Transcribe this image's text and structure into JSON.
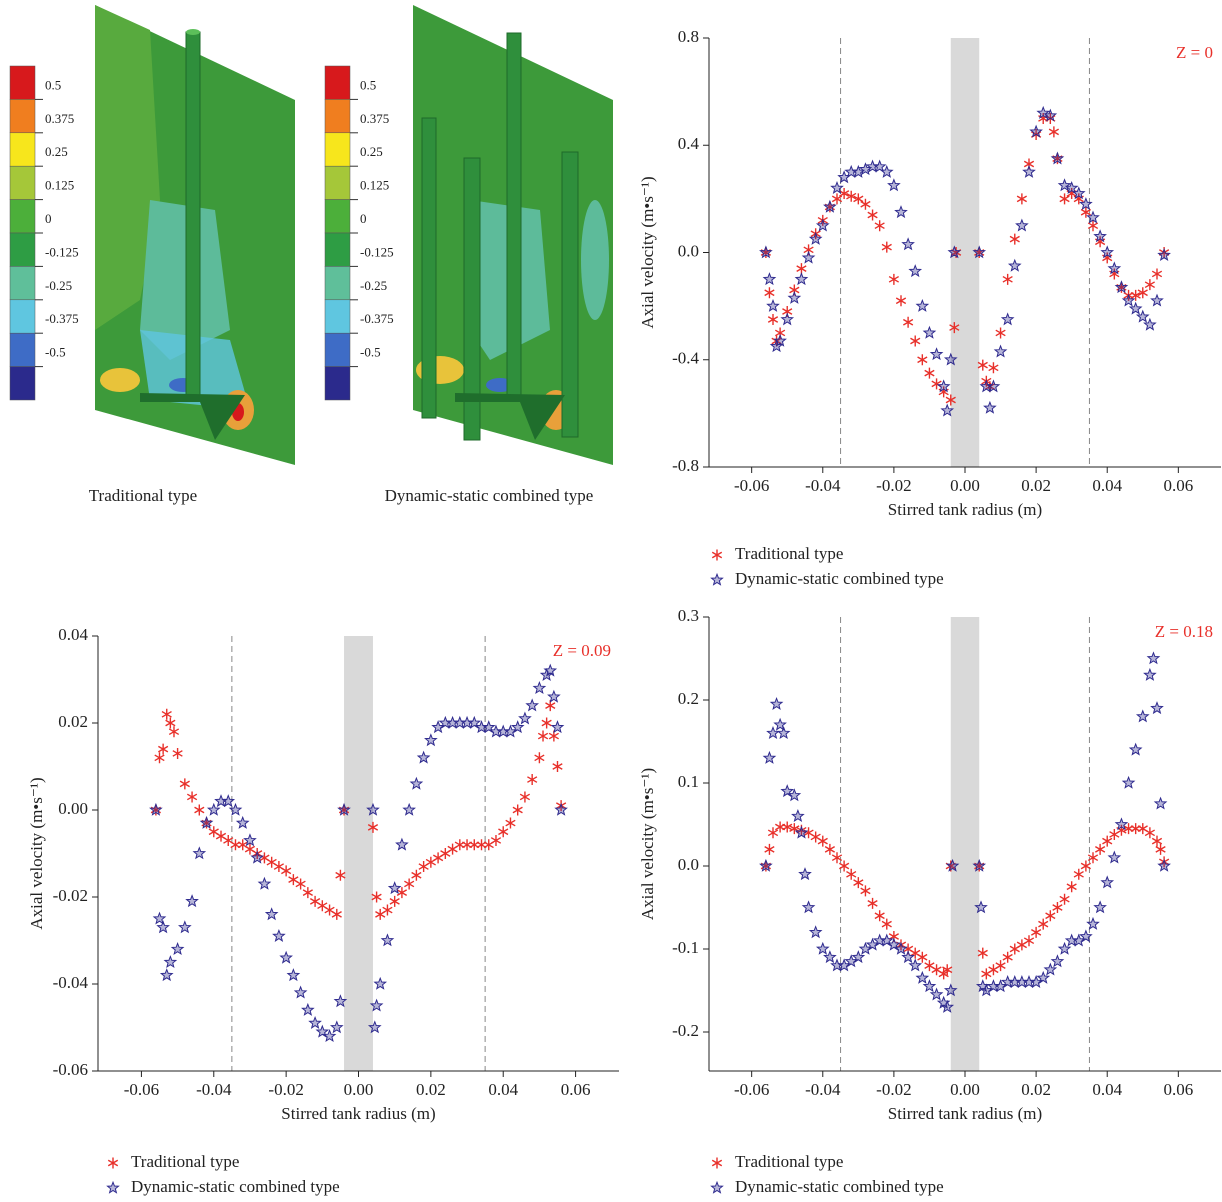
{
  "contour_panels": {
    "colorbar_ticks": [
      0.5,
      0.375,
      0.25,
      0.125,
      0,
      -0.125,
      -0.25,
      -0.375,
      -0.5
    ],
    "captions": [
      "Traditional type",
      "Dynamic-static combined type"
    ]
  },
  "chart_data": [
    {
      "type": "scatter",
      "annotation": "Z = 0",
      "xlabel": "Stirred tank radius (m)",
      "ylabel": "Axial velocity (m•s⁻¹)",
      "xlim": [
        -0.072,
        0.072
      ],
      "ylim": [
        -0.8,
        0.8
      ],
      "xticks": [
        -0.06,
        -0.04,
        -0.02,
        {
          "value": 0,
          "label": "0.00"
        },
        0.02,
        0.04,
        0.06
      ],
      "yticks": [
        -0.8,
        -0.4,
        {
          "value": 0,
          "label": "0.0"
        },
        0.4,
        0.8
      ],
      "reference_lines": [
        -0.035,
        0.035
      ],
      "shaded_band": [
        -0.004,
        0.004
      ],
      "series": [
        {
          "name": "Traditional type",
          "color": "#e8302a",
          "marker": "asterisk",
          "x": [
            -0.056,
            -0.055,
            -0.054,
            -0.053,
            -0.052,
            -0.05,
            -0.048,
            -0.046,
            -0.044,
            -0.042,
            -0.04,
            -0.038,
            -0.036,
            -0.034,
            -0.032,
            -0.03,
            -0.028,
            -0.026,
            -0.024,
            -0.022,
            -0.02,
            -0.018,
            -0.016,
            -0.014,
            -0.012,
            -0.01,
            -0.008,
            -0.006,
            -0.004,
            -0.003,
            -0.0025,
            0.004,
            0.005,
            0.006,
            0.007,
            0.008,
            0.01,
            0.012,
            0.014,
            0.016,
            0.018,
            0.02,
            0.022,
            0.024,
            0.025,
            0.026,
            0.028,
            0.03,
            0.032,
            0.034,
            0.036,
            0.038,
            0.04,
            0.042,
            0.044,
            0.046,
            0.048,
            0.05,
            0.052,
            0.054,
            0.056
          ],
          "values": [
            0,
            -0.15,
            -0.25,
            -0.33,
            -0.3,
            -0.22,
            -0.14,
            -0.06,
            0.01,
            0.07,
            0.12,
            0.17,
            0.2,
            0.22,
            0.21,
            0.2,
            0.18,
            0.14,
            0.1,
            0.02,
            -0.1,
            -0.18,
            -0.26,
            -0.33,
            -0.4,
            -0.45,
            -0.49,
            -0.52,
            -0.55,
            -0.28,
            0,
            0,
            -0.42,
            -0.48,
            -0.5,
            -0.43,
            -0.3,
            -0.1,
            0.05,
            0.2,
            0.33,
            0.44,
            0.5,
            0.5,
            0.45,
            0.35,
            0.2,
            0.22,
            0.2,
            0.15,
            0.1,
            0.04,
            -0.02,
            -0.08,
            -0.13,
            -0.16,
            -0.16,
            -0.15,
            -0.12,
            -0.08,
            0
          ]
        },
        {
          "name": "Dynamic-static combined type",
          "color": "#2e2a8e",
          "marker": "star",
          "x": [
            -0.056,
            -0.055,
            -0.054,
            -0.053,
            -0.052,
            -0.05,
            -0.048,
            -0.046,
            -0.044,
            -0.042,
            -0.04,
            -0.038,
            -0.036,
            -0.034,
            -0.032,
            -0.03,
            -0.028,
            -0.026,
            -0.024,
            -0.022,
            -0.02,
            -0.018,
            -0.016,
            -0.014,
            -0.012,
            -0.01,
            -0.008,
            -0.006,
            -0.005,
            -0.004,
            -0.003,
            0.004,
            0.006,
            0.007,
            0.008,
            0.01,
            0.012,
            0.014,
            0.016,
            0.018,
            0.02,
            0.022,
            0.024,
            0.026,
            0.028,
            0.03,
            0.032,
            0.034,
            0.036,
            0.038,
            0.04,
            0.042,
            0.044,
            0.046,
            0.048,
            0.05,
            0.052,
            0.054,
            0.056
          ],
          "values": [
            0,
            -0.1,
            -0.2,
            -0.35,
            -0.33,
            -0.25,
            -0.17,
            -0.1,
            -0.02,
            0.05,
            0.1,
            0.17,
            0.24,
            0.28,
            0.3,
            0.3,
            0.31,
            0.32,
            0.32,
            0.3,
            0.25,
            0.15,
            0.03,
            -0.07,
            -0.2,
            -0.3,
            -0.38,
            -0.5,
            -0.59,
            -0.4,
            0,
            0,
            -0.5,
            -0.58,
            -0.5,
            -0.37,
            -0.25,
            -0.05,
            0.1,
            0.3,
            0.45,
            0.52,
            0.51,
            0.35,
            0.25,
            0.24,
            0.22,
            0.18,
            0.13,
            0.06,
            0,
            -0.06,
            -0.13,
            -0.18,
            -0.21,
            -0.24,
            -0.27,
            -0.18,
            -0.01
          ]
        }
      ]
    },
    {
      "type": "scatter",
      "annotation": "Z = 0.09",
      "xlabel": "Stirred tank radius (m)",
      "ylabel": "Axial velocity (m•s⁻¹)",
      "xlim": [
        -0.072,
        0.072
      ],
      "ylim": [
        -0.06,
        0.04
      ],
      "xticks": [
        -0.06,
        -0.04,
        -0.02,
        {
          "value": 0,
          "label": "0.00"
        },
        0.02,
        0.04,
        0.06
      ],
      "yticks": [
        -0.06,
        -0.04,
        -0.02,
        {
          "value": 0,
          "label": "0.00"
        },
        0.02,
        0.04
      ],
      "reference_lines": [
        -0.035,
        0.035
      ],
      "shaded_band": [
        -0.004,
        0.004
      ],
      "series": [
        {
          "name": "Traditional type",
          "color": "#e8302a",
          "marker": "asterisk",
          "x": [
            -0.056,
            -0.055,
            -0.054,
            -0.053,
            -0.052,
            -0.051,
            -0.05,
            -0.048,
            -0.046,
            -0.044,
            -0.042,
            -0.04,
            -0.038,
            -0.036,
            -0.034,
            -0.032,
            -0.03,
            -0.028,
            -0.026,
            -0.024,
            -0.022,
            -0.02,
            -0.018,
            -0.016,
            -0.014,
            -0.012,
            -0.01,
            -0.008,
            -0.006,
            -0.005,
            -0.004,
            0.004,
            0.005,
            0.006,
            0.008,
            0.01,
            0.012,
            0.014,
            0.016,
            0.018,
            0.02,
            0.022,
            0.024,
            0.026,
            0.028,
            0.03,
            0.032,
            0.034,
            0.036,
            0.038,
            0.04,
            0.042,
            0.044,
            0.046,
            0.048,
            0.05,
            0.051,
            0.052,
            0.053,
            0.054,
            0.055,
            0.056
          ],
          "values": [
            0,
            0.012,
            0.014,
            0.022,
            0.02,
            0.018,
            0.013,
            0.006,
            0.003,
            0,
            -0.003,
            -0.005,
            -0.006,
            -0.007,
            -0.008,
            -0.008,
            -0.009,
            -0.01,
            -0.011,
            -0.012,
            -0.013,
            -0.014,
            -0.016,
            -0.017,
            -0.019,
            -0.021,
            -0.022,
            -0.023,
            -0.024,
            -0.015,
            0,
            -0.004,
            -0.02,
            -0.024,
            -0.023,
            -0.021,
            -0.019,
            -0.017,
            -0.015,
            -0.013,
            -0.012,
            -0.011,
            -0.01,
            -0.009,
            -0.008,
            -0.008,
            -0.008,
            -0.008,
            -0.008,
            -0.007,
            -0.005,
            -0.003,
            0,
            0.003,
            0.007,
            0.012,
            0.017,
            0.02,
            0.024,
            0.017,
            0.01,
            0.001
          ]
        },
        {
          "name": "Dynamic-static combined type",
          "color": "#2e2a8e",
          "marker": "star",
          "x": [
            -0.056,
            -0.055,
            -0.054,
            -0.053,
            -0.052,
            -0.05,
            -0.048,
            -0.046,
            -0.044,
            -0.042,
            -0.04,
            -0.038,
            -0.036,
            -0.034,
            -0.032,
            -0.03,
            -0.028,
            -0.026,
            -0.024,
            -0.022,
            -0.02,
            -0.018,
            -0.016,
            -0.014,
            -0.012,
            -0.01,
            -0.008,
            -0.006,
            -0.005,
            -0.004,
            0.004,
            0.0045,
            0.005,
            0.006,
            0.008,
            0.01,
            0.012,
            0.014,
            0.016,
            0.018,
            0.02,
            0.022,
            0.024,
            0.026,
            0.028,
            0.03,
            0.032,
            0.034,
            0.036,
            0.038,
            0.04,
            0.042,
            0.044,
            0.046,
            0.048,
            0.05,
            0.052,
            0.053,
            0.054,
            0.055,
            0.056
          ],
          "values": [
            0,
            -0.025,
            -0.027,
            -0.038,
            -0.035,
            -0.032,
            -0.027,
            -0.021,
            -0.01,
            -0.003,
            0,
            0.002,
            0.002,
            0,
            -0.003,
            -0.007,
            -0.011,
            -0.017,
            -0.024,
            -0.029,
            -0.034,
            -0.038,
            -0.042,
            -0.046,
            -0.049,
            -0.051,
            -0.052,
            -0.05,
            -0.044,
            0,
            0,
            -0.05,
            -0.045,
            -0.04,
            -0.03,
            -0.018,
            -0.008,
            0,
            0.006,
            0.012,
            0.016,
            0.019,
            0.02,
            0.02,
            0.02,
            0.02,
            0.02,
            0.019,
            0.019,
            0.018,
            0.018,
            0.018,
            0.019,
            0.021,
            0.024,
            0.028,
            0.031,
            0.032,
            0.026,
            0.019,
            0
          ]
        }
      ]
    },
    {
      "type": "scatter",
      "annotation": "Z = 0.18",
      "xlabel": "Stirred tank radius (m)",
      "ylabel": "Axial velocity (m•s⁻¹)",
      "xlim": [
        -0.072,
        0.072
      ],
      "ylim": [
        -0.247,
        0.3
      ],
      "xticks": [
        -0.06,
        -0.04,
        -0.02,
        {
          "value": 0,
          "label": "0.00"
        },
        0.02,
        0.04,
        0.06
      ],
      "yticks": [
        -0.2,
        -0.1,
        {
          "value": 0,
          "label": "0.0"
        },
        0.1,
        0.2,
        0.3
      ],
      "reference_lines": [
        -0.035,
        0.035
      ],
      "shaded_band": [
        -0.004,
        0.004
      ],
      "series": [
        {
          "name": "Traditional type",
          "color": "#e8302a",
          "marker": "asterisk",
          "x": [
            -0.056,
            -0.055,
            -0.054,
            -0.052,
            -0.05,
            -0.048,
            -0.046,
            -0.044,
            -0.042,
            -0.04,
            -0.038,
            -0.036,
            -0.034,
            -0.032,
            -0.03,
            -0.028,
            -0.026,
            -0.024,
            -0.022,
            -0.02,
            -0.018,
            -0.016,
            -0.014,
            -0.012,
            -0.01,
            -0.008,
            -0.006,
            -0.005,
            -0.004,
            0.004,
            0.005,
            0.006,
            0.008,
            0.01,
            0.012,
            0.014,
            0.016,
            0.018,
            0.02,
            0.022,
            0.024,
            0.026,
            0.028,
            0.03,
            0.032,
            0.034,
            0.036,
            0.038,
            0.04,
            0.042,
            0.044,
            0.046,
            0.048,
            0.05,
            0.052,
            0.054,
            0.055,
            0.056
          ],
          "values": [
            0,
            0.02,
            0.04,
            0.047,
            0.047,
            0.045,
            0.043,
            0.04,
            0.035,
            0.03,
            0.02,
            0.01,
            0,
            -0.01,
            -0.02,
            -0.03,
            -0.045,
            -0.06,
            -0.07,
            -0.085,
            -0.095,
            -0.1,
            -0.105,
            -0.11,
            -0.12,
            -0.125,
            -0.13,
            -0.125,
            0,
            0,
            -0.105,
            -0.13,
            -0.125,
            -0.12,
            -0.11,
            -0.1,
            -0.095,
            -0.09,
            -0.08,
            -0.07,
            -0.06,
            -0.05,
            -0.04,
            -0.025,
            -0.01,
            0,
            0.01,
            0.02,
            0.03,
            0.038,
            0.043,
            0.045,
            0.045,
            0.045,
            0.04,
            0.03,
            0.02,
            0.005
          ]
        },
        {
          "name": "Dynamic-static combined type",
          "color": "#2e2a8e",
          "marker": "star",
          "x": [
            -0.056,
            -0.055,
            -0.054,
            -0.053,
            -0.052,
            -0.051,
            -0.05,
            -0.048,
            -0.047,
            -0.046,
            -0.045,
            -0.044,
            -0.042,
            -0.04,
            -0.038,
            -0.036,
            -0.034,
            -0.032,
            -0.03,
            -0.028,
            -0.026,
            -0.024,
            -0.022,
            -0.02,
            -0.018,
            -0.016,
            -0.014,
            -0.012,
            -0.01,
            -0.008,
            -0.006,
            -0.005,
            -0.004,
            -0.0035,
            0.004,
            0.0045,
            0.005,
            0.006,
            0.008,
            0.01,
            0.012,
            0.014,
            0.016,
            0.018,
            0.02,
            0.022,
            0.024,
            0.026,
            0.028,
            0.03,
            0.032,
            0.034,
            0.036,
            0.038,
            0.04,
            0.042,
            0.044,
            0.046,
            0.048,
            0.05,
            0.052,
            0.053,
            0.054,
            0.055,
            0.056
          ],
          "values": [
            0,
            0.13,
            0.16,
            0.195,
            0.17,
            0.16,
            0.09,
            0.085,
            0.06,
            0.04,
            -0.01,
            -0.05,
            -0.08,
            -0.1,
            -0.11,
            -0.12,
            -0.12,
            -0.115,
            -0.11,
            -0.1,
            -0.095,
            -0.09,
            -0.09,
            -0.095,
            -0.1,
            -0.11,
            -0.12,
            -0.135,
            -0.145,
            -0.155,
            -0.165,
            -0.17,
            -0.15,
            0,
            0,
            -0.05,
            -0.145,
            -0.15,
            -0.145,
            -0.145,
            -0.14,
            -0.14,
            -0.14,
            -0.14,
            -0.14,
            -0.135,
            -0.125,
            -0.115,
            -0.1,
            -0.09,
            -0.09,
            -0.085,
            -0.07,
            -0.05,
            -0.02,
            0.01,
            0.05,
            0.1,
            0.14,
            0.18,
            0.23,
            0.25,
            0.19,
            0.075,
            0
          ]
        }
      ]
    }
  ]
}
